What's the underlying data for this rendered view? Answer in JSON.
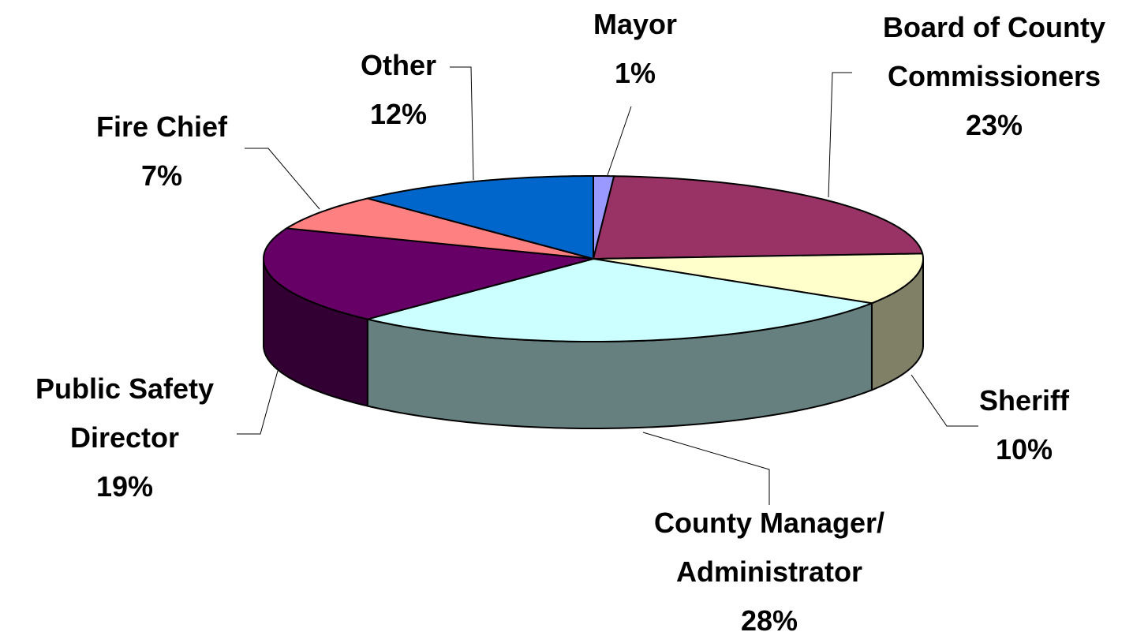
{
  "chart_data": {
    "type": "pie",
    "categories": [
      "Mayor",
      "Board of County Commissioners",
      "Sheriff",
      "County Manager/ Administrator",
      "Public Safety Director",
      "Fire Chief",
      "Other"
    ],
    "values": [
      1,
      23,
      10,
      28,
      19,
      7,
      12
    ],
    "value_labels": [
      "1%",
      "23%",
      "10%",
      "28%",
      "19%",
      "7%",
      "12%"
    ],
    "colors": [
      "#9999ff",
      "#993366",
      "#ffffcc",
      "#ccffff",
      "#660066",
      "#ff8080",
      "#0066cc"
    ]
  }
}
